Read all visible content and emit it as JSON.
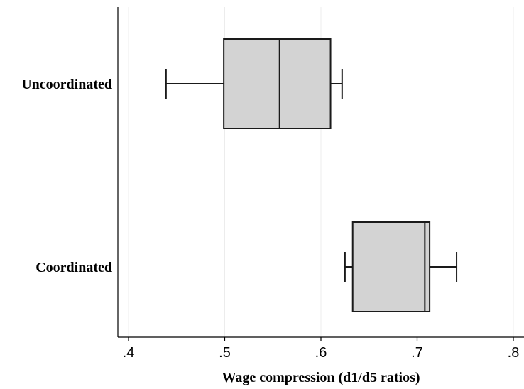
{
  "chart_data": {
    "type": "boxplot",
    "orientation": "horizontal",
    "title": "",
    "xlabel": "Wage compression (d1/d5 ratios)",
    "ylabel": "",
    "xlim": [
      0.4,
      0.8
    ],
    "x_ticks": [
      0.4,
      0.5,
      0.6,
      0.7,
      0.8
    ],
    "x_tick_labels": [
      ".4",
      ".5",
      ".6",
      ".7",
      ".8"
    ],
    "grid": true,
    "legend": "none",
    "categories": [
      "Uncoordinated",
      "Coordinated"
    ],
    "series": [
      {
        "category": "Uncoordinated",
        "whisker_low": 0.439,
        "q1": 0.499,
        "median": 0.557,
        "q3": 0.61,
        "whisker_high": 0.622
      },
      {
        "category": "Coordinated",
        "whisker_low": 0.625,
        "q1": 0.633,
        "median": 0.708,
        "q3": 0.713,
        "whisker_high": 0.741
      }
    ],
    "colors": {
      "box_fill": "#d3d3d3",
      "stroke": "#1a1a1a",
      "grid": "#ececec",
      "axis": "#000000"
    }
  }
}
